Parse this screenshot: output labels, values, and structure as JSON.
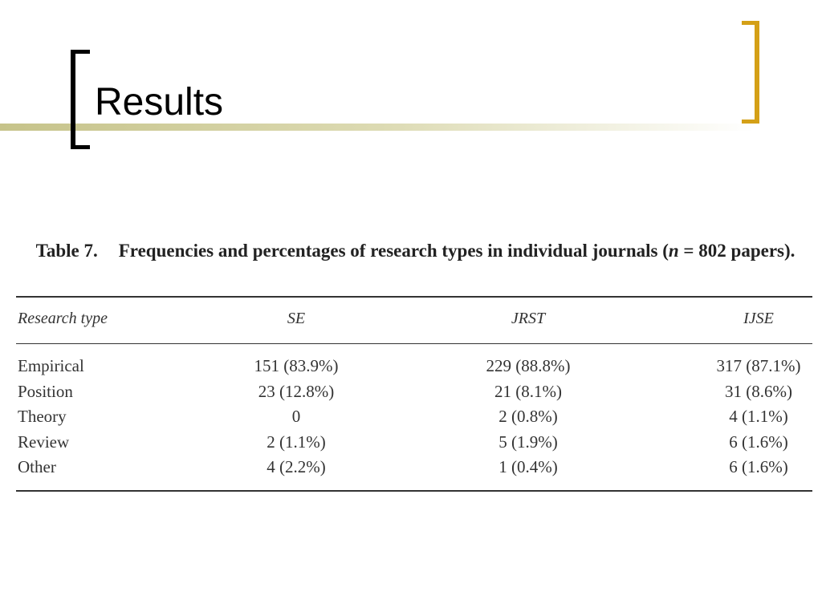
{
  "header": {
    "title": "Results"
  },
  "table": {
    "caption": {
      "label": "Table 7.",
      "text_before": "Frequencies and percentages of research types in individual journals (",
      "italic": "n",
      "text_after": " = 802 papers)."
    },
    "columns": [
      "Research type",
      "SE",
      "JRST",
      "IJSE"
    ],
    "rows": [
      [
        "Empirical",
        "151 (83.9%)",
        "229 (88.8%)",
        "317 (87.1%)"
      ],
      [
        "Position",
        "23 (12.8%)",
        "21 (8.1%)",
        "31 (8.6%)"
      ],
      [
        "Theory",
        "0",
        "2 (0.8%)",
        "4 (1.1%)"
      ],
      [
        "Review",
        "2 (1.1%)",
        "5 (1.9%)",
        "6 (1.6%)"
      ],
      [
        "Other",
        "4 (2.2%)",
        "1 (0.4%)",
        "6 (1.6%)"
      ]
    ]
  }
}
